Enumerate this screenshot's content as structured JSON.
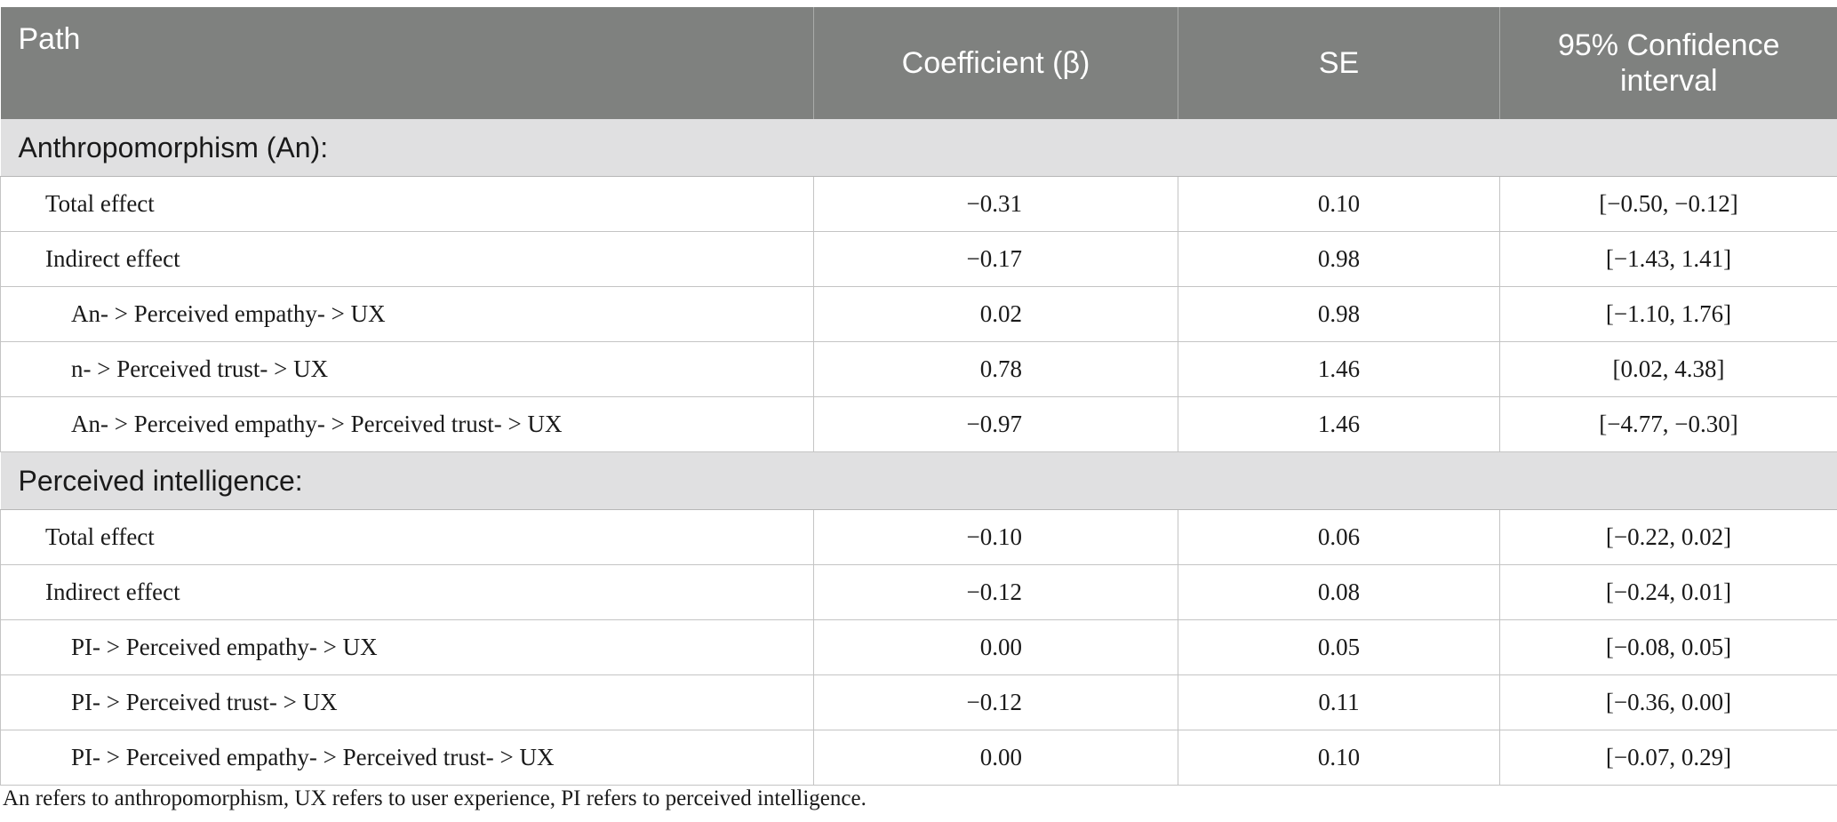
{
  "table": {
    "headers": {
      "path": "Path",
      "coefficient": "Coefficient (β)",
      "se": "SE",
      "ci": "95% Confidence interval"
    },
    "sections": [
      {
        "title": "Anthropomorphism (An):",
        "rows": [
          {
            "path": "Total effect",
            "coef": "−0.31",
            "se": "0.10",
            "ci": "[−0.50, −0.12]"
          },
          {
            "path": "Indirect effect",
            "coef": "−0.17",
            "se": "0.98",
            "ci": "[−1.43, 1.41]"
          },
          {
            "path": "An- > Perceived empathy- > UX",
            "coef": "0.02",
            "se": "0.98",
            "ci": "[−1.10, 1.76]"
          },
          {
            "path": "n- > Perceived trust- > UX",
            "coef": "0.78",
            "se": "1.46",
            "ci": "[0.02, 4.38]"
          },
          {
            "path": "An- > Perceived empathy- > Perceived trust- > UX",
            "coef": "−0.97",
            "se": "1.46",
            "ci": "[−4.77, −0.30]"
          }
        ]
      },
      {
        "title": "Perceived intelligence:",
        "rows": [
          {
            "path": "Total effect",
            "coef": "−0.10",
            "se": "0.06",
            "ci": "[−0.22, 0.02]"
          },
          {
            "path": "Indirect effect",
            "coef": "−0.12",
            "se": "0.08",
            "ci": "[−0.24, 0.01]"
          },
          {
            "path": "PI- > Perceived empathy- > UX",
            "coef": "0.00",
            "se": "0.05",
            "ci": "[−0.08, 0.05]"
          },
          {
            "path": "PI- > Perceived trust- > UX",
            "coef": "−0.12",
            "se": "0.11",
            "ci": "[−0.36, 0.00]"
          },
          {
            "path": "PI- > Perceived empathy- > Perceived trust- > UX",
            "coef": "0.00",
            "se": "0.10",
            "ci": "[−0.07, 0.29]"
          }
        ]
      }
    ]
  },
  "footnote": "An refers to anthropomorphism, UX refers to user experience, PI refers to perceived intelligence.",
  "colors": {
    "header_bg": "#7f817f",
    "header_text": "#ffffff",
    "section_bg": "#e0e0e1",
    "grid_line": "#c4c4c4"
  }
}
